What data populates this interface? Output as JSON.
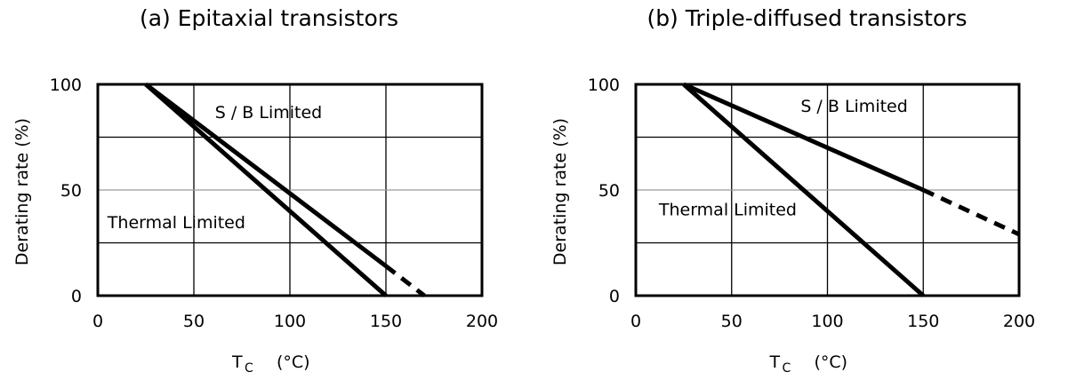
{
  "chart_data": [
    {
      "type": "line",
      "title": "(a) Epitaxial transistors",
      "xlabel_main": "T",
      "xlabel_sub": "C",
      "xlabel_unit": "(°C)",
      "ylabel": "Derating rate (%)",
      "xlim": [
        0,
        200
      ],
      "ylim": [
        0,
        100
      ],
      "xticks": [
        "0",
        "50",
        "100",
        "150",
        "200"
      ],
      "yticks": [
        "0",
        "50",
        "100"
      ],
      "grid": true,
      "series": [
        {
          "name": "Thermal Limited",
          "x": [
            25,
            150
          ],
          "y": [
            100,
            0
          ],
          "style": "solid"
        },
        {
          "name": "S / B Limited",
          "x": [
            25,
            150
          ],
          "y": [
            100,
            14
          ],
          "style": "solid"
        },
        {
          "name": "S / B Limited",
          "x": [
            150,
            170
          ],
          "y": [
            14,
            0
          ],
          "style": "dashed"
        }
      ],
      "annotations": [
        {
          "text": "S / B Limited",
          "x": 61,
          "y": 84
        },
        {
          "text": "Thermal Limited",
          "x": 5,
          "y": 32
        }
      ]
    },
    {
      "type": "line",
      "title": "(b) Triple-diffused transistors",
      "xlabel_main": "T",
      "xlabel_sub": "C",
      "xlabel_unit": "(°C)",
      "ylabel": "Derating rate (%)",
      "xlim": [
        0,
        200
      ],
      "ylim": [
        0,
        100
      ],
      "xticks": [
        "0",
        "50",
        "100",
        "150",
        "200"
      ],
      "yticks": [
        "0",
        "50",
        "100"
      ],
      "grid": true,
      "series": [
        {
          "name": "Thermal Limited",
          "x": [
            25,
            150
          ],
          "y": [
            100,
            0
          ],
          "style": "solid"
        },
        {
          "name": "S / B Limited",
          "x": [
            25,
            150
          ],
          "y": [
            100,
            50
          ],
          "style": "solid"
        },
        {
          "name": "S / B Limited",
          "x": [
            150,
            200
          ],
          "y": [
            50,
            29
          ],
          "style": "dashed"
        }
      ],
      "annotations": [
        {
          "text": "S / B Limited",
          "x": 86,
          "y": 87
        },
        {
          "text": "Thermal Limited",
          "x": 12,
          "y": 38
        }
      ]
    }
  ]
}
